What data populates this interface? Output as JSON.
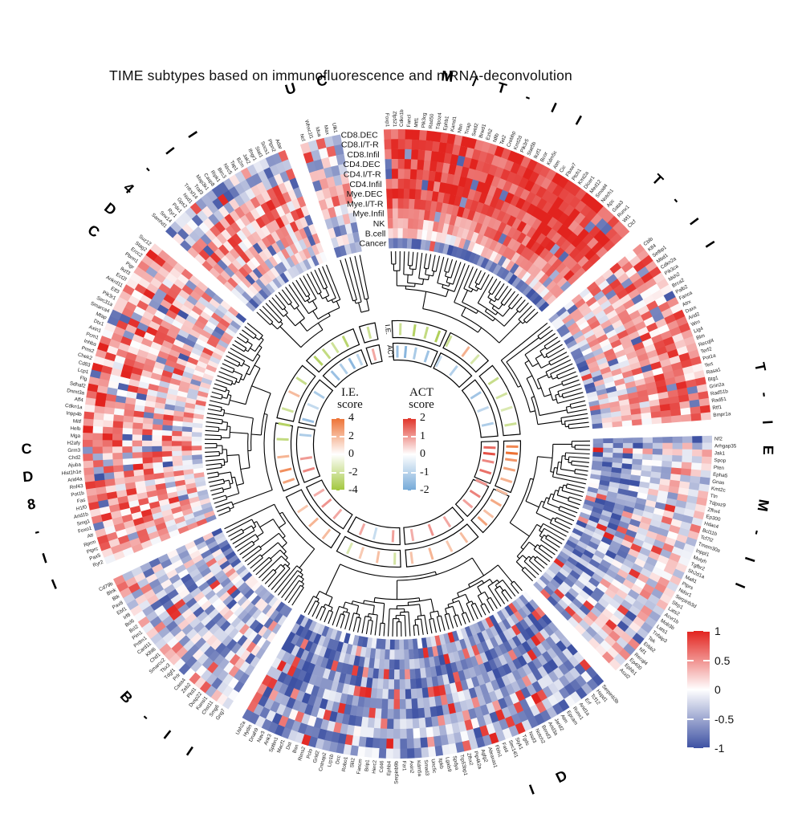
{
  "title": "TIME subtypes based on immunofluorescence and mRNA-deconvolution",
  "legends": {
    "ie": {
      "title_line1": "I.E.",
      "title_line2": "score",
      "ticks": [
        "4",
        "2",
        "0",
        "-2",
        "-4"
      ]
    },
    "act": {
      "title_line1": "ACT",
      "title_line2": "score",
      "ticks": [
        "2",
        "1",
        "0",
        "-1",
        "-2"
      ]
    },
    "heatmap": {
      "ticks": [
        "1",
        "0.5",
        "0",
        "-0.5",
        "-1"
      ]
    }
  },
  "track_labels": {
    "outer": "I.E.",
    "inner": "ACT"
  },
  "colors": {
    "heat_pos": "#E2231E",
    "heat_neg": "#3D51A3",
    "ie_pos": "#ED7234",
    "ie_neg": "#A2C73D",
    "act_pos": "#E03227",
    "act_neg": "#74A9D8",
    "dendrogram": "#000000",
    "ring_outline": "#000000",
    "text": "#111111"
  },
  "chart_data": {
    "type": "heatmap",
    "layout": "circular",
    "value_range": [
      -1,
      1
    ],
    "ie_score_range": [
      -4,
      4
    ],
    "act_score_range": [
      -2,
      2
    ],
    "rings": [
      "CD8.DEC",
      "CD8.I/T-R",
      "CD8.Infil",
      "CD4.DEC",
      "CD4.I/T-R",
      "CD4.Infil",
      "Mye.DEC",
      "Mye.I/T-R",
      "Mye.Infil",
      "NK",
      "B.cell",
      "Cancer"
    ],
    "sectors": [
      {
        "name": "M/T-II",
        "a0": -2.5,
        "a1": 47.5,
        "seed": 1,
        "flip": 0.04,
        "spread": 0.3,
        "profile": [
          0.85,
          0.82,
          0.85,
          0.8,
          0.85,
          0.8,
          0.78,
          0.72,
          0.62,
          0.35,
          0.15,
          -0.78
        ],
        "genes": [
          "Foxp1",
          "Zfp521",
          "Cdkn1b",
          "Fancl",
          "Mtf1",
          "Pik3cg",
          "Rad50",
          "Tdpoz4",
          "Ephb1",
          "Kansl1",
          "Nbn",
          "Trrap",
          "Setd2",
          "Brwd1",
          "Ezh2",
          "Nfib",
          "Tet2",
          "Crebbp",
          "Kmt2d",
          "Pik3r5",
          "Stat5b",
          "Ikzf1",
          "Bcor",
          "Kdm5c",
          "Atm",
          "Cic",
          "Fbxw7",
          "Ptch1",
          "Kmt2a",
          "Dicer1",
          "Med12",
          "Smad4",
          "Notch1",
          "Apc",
          "Gata3",
          "Runx1",
          "Wt1",
          "Ctcf"
        ],
        "ie_ticks": [
          [
            0.08,
            -1.2
          ],
          [
            0.22,
            -2.2
          ],
          [
            0.34,
            -1.6
          ],
          [
            0.46,
            -2.4
          ],
          [
            0.58,
            -1.2
          ],
          [
            0.78,
            1.2
          ],
          [
            0.9,
            -0.8
          ]
        ],
        "act_ticks": [
          [
            0.05,
            -1.6
          ],
          [
            0.15,
            -2.0
          ],
          [
            0.27,
            -1.2
          ],
          [
            0.42,
            -1.5
          ],
          [
            0.58,
            -0.6
          ],
          [
            0.8,
            -1.0
          ]
        ]
      },
      {
        "name": "T-II",
        "a0": 50.5,
        "a1": 85.5,
        "seed": 2,
        "flip": 0.08,
        "spread": 0.5,
        "profile": [
          0.5,
          0.45,
          0.5,
          0.42,
          0.45,
          0.35,
          0.3,
          0.25,
          0.18,
          0.08,
          0.0,
          -0.55
        ],
        "genes": [
          "Cblb",
          "Klf4",
          "Setbp1",
          "Mbd1",
          "Cdkn2a",
          "Pik3ca",
          "Msh2",
          "Brca2",
          "Palb2",
          "Fanca",
          "Atrx",
          "Daxx",
          "Arid2",
          "Wrn",
          "Lig4",
          "Blm",
          "Recql4",
          "Terf2",
          "Pot1a",
          "Tert",
          "Rasa1",
          "Btg1",
          "Grin2a",
          "Rad51b",
          "Rad51",
          "Rtf1",
          "Bmpr1a"
        ],
        "ie_ticks": [
          [
            0.18,
            -1.4
          ],
          [
            0.42,
            -1.0
          ],
          [
            0.62,
            -0.6
          ],
          [
            0.85,
            -1.2
          ]
        ],
        "act_ticks": [
          [
            0.22,
            -1.4
          ],
          [
            0.5,
            -0.7
          ],
          [
            0.78,
            -1.1
          ]
        ]
      },
      {
        "name": "T-IE M-II",
        "a0": 88.5,
        "a1": 136,
        "seed": 3,
        "flip": 0.08,
        "spread": 0.55,
        "profile": [
          0.1,
          0.0,
          0.05,
          -0.1,
          -0.15,
          -0.2,
          -0.35,
          -0.5,
          -0.6,
          -0.65,
          -0.6,
          -0.5
        ],
        "genes": [
          "Nf2",
          "Arhgap35",
          "Jak1",
          "Spop",
          "Pten",
          "Epha5",
          "Gnas",
          "Kmt2c",
          "Ttn",
          "Tdpoz9",
          "Zfhx4",
          "Ep300",
          "Hdac4",
          "Bcl11b",
          "Tcf7l2",
          "Tmem30a",
          "Inppl1",
          "Mutyh",
          "Tgfbr2",
          "Sh2d1a",
          "Malt1",
          "Ptprs",
          "Ndor1",
          "Serpinb3d",
          "Sfrp1",
          "Lats2",
          "Acvr1b",
          "Mob3b",
          "Lats1",
          "Tnfaip3",
          "Tek",
          "Erbb2",
          "Nf1",
          "Recql4",
          "Ep400",
          "Ephb1",
          "Asxl2"
        ],
        "ie_ticks": [
          [
            0.06,
            2.4
          ],
          [
            0.13,
            3.0
          ],
          [
            0.2,
            2.0
          ],
          [
            0.3,
            1.6
          ],
          [
            0.42,
            1.2
          ],
          [
            0.55,
            0.9
          ],
          [
            0.68,
            1.4
          ],
          [
            0.82,
            0.8
          ],
          [
            0.92,
            1.6
          ]
        ],
        "act_ticks": [
          [
            0.08,
            1.6
          ],
          [
            0.16,
            2.0
          ],
          [
            0.26,
            1.1
          ],
          [
            0.4,
            1.5
          ],
          [
            0.55,
            0.9
          ],
          [
            0.72,
            1.2
          ],
          [
            0.88,
            0.7
          ]
        ]
      },
      {
        "name": "ID",
        "a0": 139,
        "a1": 209.5,
        "seed": 4,
        "flip": 0.1,
        "spread": 0.5,
        "profile": [
          -0.45,
          -0.5,
          -0.45,
          -0.55,
          -0.6,
          -0.55,
          -0.6,
          -0.65,
          -0.7,
          -0.65,
          -0.6,
          -0.5
        ],
        "genes": [
          "Serpinb3b",
          "Hspd1",
          "Tcf12",
          "Erf",
          "Arid1a",
          "Runx1",
          "Epcam",
          "Atm",
          "Jarid2",
          "Arid3a",
          "Bend3",
          "Notch2",
          "Nsd3",
          "Tgds",
          "Styk1",
          "Sec14l1",
          "Fat4",
          "Fbln1",
          "Abraxas1",
          "Agfg2",
          "Pip4k2a",
          "Zfhx2",
          "Trp53bp1",
          "Spdya",
          "Lgals9",
          "Itpkb",
          "Unc5c",
          "Smad3",
          "Kdm5a",
          "Axin2",
          "Fzr1",
          "Serpinb9b",
          "Ephb4",
          "Cd46",
          "Herc2",
          "Brip1",
          "Fancm",
          "Slit2",
          "Robo1",
          "Dcc",
          "Lrp1b",
          "Cntnap2",
          "Grid2",
          "Pclo",
          "Rims2",
          "Bsn",
          "Dst",
          "Macf1",
          "Sptbn1",
          "Ank3",
          "Nav3",
          "Dnah9",
          "Hydin",
          "Ush2a"
        ],
        "ie_ticks": [
          [
            0.08,
            0.9
          ],
          [
            0.2,
            0.6
          ],
          [
            0.34,
            1.1
          ],
          [
            0.48,
            0.7
          ],
          [
            0.6,
            -0.9
          ],
          [
            0.72,
            0.8
          ],
          [
            0.84,
            0.5
          ],
          [
            0.93,
            -0.6
          ]
        ],
        "act_ticks": [
          [
            0.12,
            0.6
          ],
          [
            0.28,
            0.9
          ],
          [
            0.45,
            0.5
          ],
          [
            0.62,
            0.7
          ],
          [
            0.78,
            -0.5
          ],
          [
            0.9,
            0.6
          ]
        ]
      },
      {
        "name": "B-II",
        "a0": 212.5,
        "a1": 244.5,
        "seed": 5,
        "flip": 0.08,
        "spread": 0.6,
        "profile": [
          0.15,
          -0.2,
          -0.3,
          -0.35,
          -0.3,
          -0.4,
          -0.35,
          -0.3,
          -0.4,
          -0.45,
          -0.35,
          -0.5
        ],
        "genes": [
          "Gng7",
          "Smg6",
          "Chst11",
          "Kansl1",
          "Dusp22",
          "Pkd1",
          "Zeb2",
          "Cass4",
          "Prlr",
          "Tdgf1",
          "Tbx3",
          "Smarcc2",
          "Chd1",
          "Klhl6",
          "Card11",
          "Prdm1",
          "Pim1",
          "Bcl2",
          "Bcl6",
          "Irf8",
          "Ebf1",
          "Pax8",
          "Btk",
          "Blnk",
          "Cd79b"
        ],
        "ie_ticks": [
          [
            0.18,
            0.9
          ],
          [
            0.45,
            1.1
          ],
          [
            0.72,
            0.6
          ]
        ],
        "act_ticks": [
          [
            0.25,
            0.6
          ],
          [
            0.55,
            0.9
          ],
          [
            0.8,
            0.5
          ]
        ]
      },
      {
        "name": "CD8-II",
        "a0": 247.5,
        "a1": 309.5,
        "seed": 6,
        "flip": 0.09,
        "spread": 0.6,
        "profile": [
          0.45,
          0.5,
          0.42,
          0.45,
          0.5,
          0.4,
          0.35,
          0.3,
          0.35,
          0.2,
          0.25,
          0.1
        ],
        "genes": [
          "Ryr2",
          "Pax5",
          "Ptprc",
          "Rprm",
          "Atr",
          "Foxo1",
          "Smg1",
          "Arid1b",
          "H1f0",
          "Fas",
          "Pot1b",
          "Rnf43",
          "Arid4a",
          "Hist1h1e",
          "Ajuba",
          "Chd2",
          "Grm3",
          "H2afy",
          "Mga",
          "Helb",
          "Mitf",
          "Inpp4b",
          "Cdkn1a",
          "Aff4",
          "Dnmt3a",
          "Sdhaf2",
          "Flg",
          "Lcp1",
          "Cd83",
          "Chek2",
          "Pms2",
          "Inhba",
          "Pcm1",
          "Axin1",
          "Dtx1",
          "Mtap",
          "Smarca4",
          "Sec31a",
          "Pik3r1",
          "Elf3",
          "Ankrd11",
          "Ect2l",
          "Ikzf3",
          "Pigr",
          "Pbrm1",
          "Ercc2",
          "Stag2",
          "Suz12"
        ],
        "ie_ticks": [
          [
            0.06,
            1.6
          ],
          [
            0.15,
            2.2
          ],
          [
            0.26,
            1.1
          ],
          [
            0.4,
            -1.6
          ],
          [
            0.52,
            -2.2
          ],
          [
            0.64,
            -1.1
          ],
          [
            0.78,
            0.9
          ],
          [
            0.9,
            -1.4
          ]
        ],
        "act_ticks": [
          [
            0.1,
            1.1
          ],
          [
            0.22,
            0.8
          ],
          [
            0.45,
            -1.1
          ],
          [
            0.6,
            -1.6
          ],
          [
            0.75,
            -0.6
          ],
          [
            0.88,
            -1.2
          ]
        ]
      },
      {
        "name": "CD4-II",
        "a0": 312.5,
        "a1": 339,
        "seed": 7,
        "flip": 0.08,
        "spread": 0.55,
        "profile": [
          -0.35,
          -0.42,
          -0.3,
          0.45,
          0.5,
          0.42,
          0.45,
          0.35,
          0.3,
          0.0,
          -0.1,
          -0.45
        ],
        "genes": [
          "Samhd1",
          "Snx14",
          "Ryr1",
          "Pdx1",
          "Gps2",
          "Nsd1",
          "Tnfrsf14",
          "Traf3",
          "Map3k1",
          "Casp8",
          "Ripk1",
          "Birc3",
          "Nlrc5",
          "Tap1",
          "B2m",
          "Jak2",
          "Ifngr1",
          "Stat1",
          "Socs1",
          "Ptpn2",
          "Adar"
        ],
        "ie_ticks": [
          [
            0.15,
            -2.2
          ],
          [
            0.35,
            -1.6
          ],
          [
            0.55,
            -1.1
          ],
          [
            0.78,
            -2.0
          ]
        ],
        "act_ticks": [
          [
            0.2,
            -1.6
          ],
          [
            0.45,
            -1.1
          ],
          [
            0.68,
            -1.9
          ],
          [
            0.88,
            -0.8
          ]
        ]
      },
      {
        "name": "UC",
        "a0": 342,
        "a1": 349.5,
        "seed": 8,
        "flip": 0.08,
        "spread": 0.55,
        "profile": [
          -0.25,
          -0.35,
          -0.15,
          0.05,
          0.0,
          0.15,
          0.3,
          0.1,
          0.0,
          -0.3,
          -0.1,
          -0.6
        ],
        "genes": [
          "Ncl",
          "Whsc1l1",
          "Idua",
          "Max",
          "Ulk1"
        ],
        "ie_ticks": [
          [
            0.5,
            -1.2
          ]
        ],
        "act_ticks": [
          [
            0.45,
            0.6
          ]
        ]
      }
    ]
  }
}
